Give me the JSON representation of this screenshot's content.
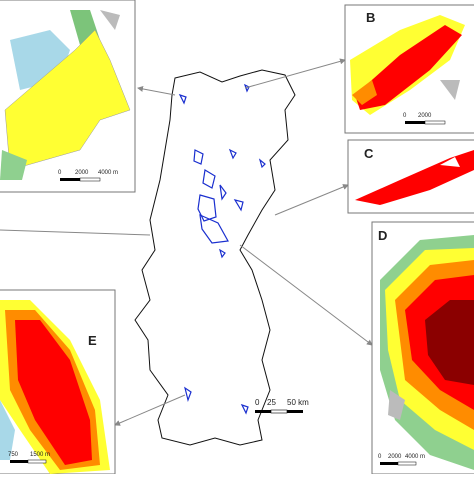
{
  "main_map": {
    "scale_labels": [
      "0",
      "25",
      "50 km"
    ]
  },
  "insets": [
    {
      "scale_labels": [
        "0",
        "2000",
        "4000 m"
      ]
    },
    {
      "label": "B",
      "scale_labels": [
        "0",
        "2000"
      ]
    },
    {
      "label": "C"
    },
    {
      "label": "D",
      "scale_labels": [
        "0",
        "2000",
        "4000 m"
      ]
    },
    {
      "label": "E",
      "scale_labels": [
        "750",
        "1500 m"
      ]
    }
  ]
}
